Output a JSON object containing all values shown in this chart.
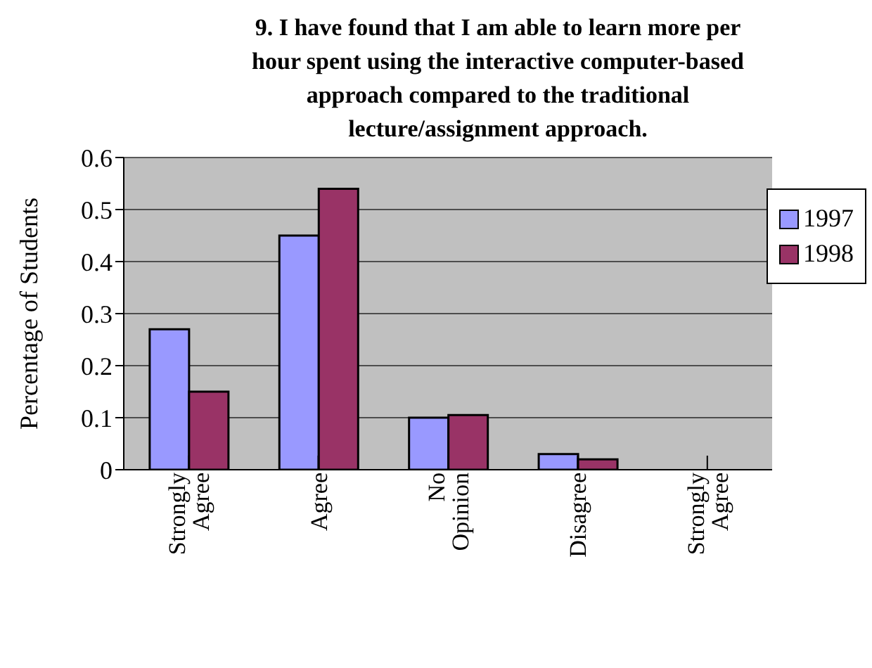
{
  "chart_data": {
    "type": "bar",
    "title": "9. I have found that I am able to learn more per hour spent using the interactive computer-based approach compared to the traditional lecture/assignment approach.",
    "ylabel": "Percentage of Students",
    "categories": [
      "Strongly Agree",
      "Agree",
      "No Opinion",
      "Disagree",
      "Strongly Agree"
    ],
    "series": [
      {
        "name": "1997",
        "color": "#9999ff",
        "values": [
          0.27,
          0.45,
          0.1,
          0.03,
          0
        ]
      },
      {
        "name": "1998",
        "color": "#993366",
        "values": [
          0.15,
          0.54,
          0.105,
          0.02,
          0
        ]
      }
    ],
    "ylim": [
      0,
      0.6
    ],
    "yticks": [
      0,
      0.1,
      0.2,
      0.3,
      0.4,
      0.5,
      0.6
    ],
    "grid": "y",
    "legend": "top right"
  }
}
